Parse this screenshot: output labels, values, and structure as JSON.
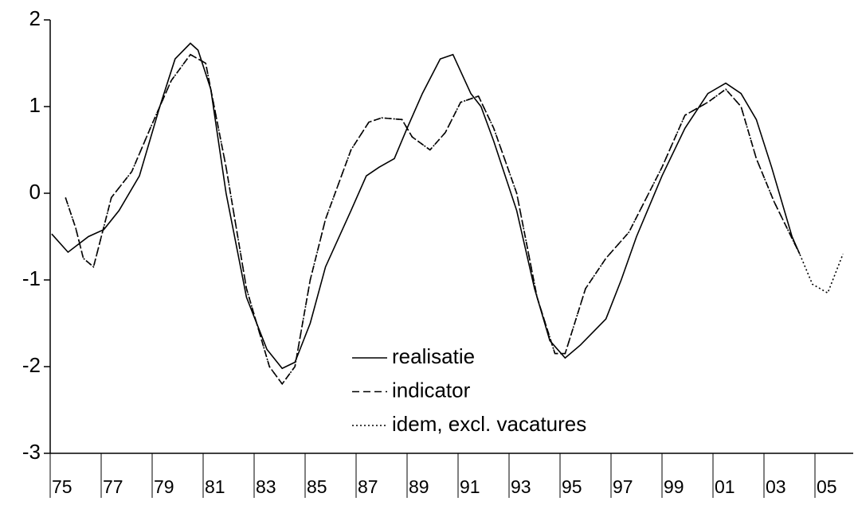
{
  "chart_data": {
    "type": "line",
    "ylim": [
      -3,
      2
    ],
    "yticks": [
      -3,
      -2,
      -1,
      0,
      1,
      2
    ],
    "xlim": [
      1975,
      2006.5
    ],
    "xticks": [
      {
        "value": 1975,
        "label": "75"
      },
      {
        "value": 1977,
        "label": "77"
      },
      {
        "value": 1979,
        "label": "79"
      },
      {
        "value": 1981,
        "label": "81"
      },
      {
        "value": 1983,
        "label": "83"
      },
      {
        "value": 1985,
        "label": "85"
      },
      {
        "value": 1987,
        "label": "87"
      },
      {
        "value": 1989,
        "label": "89"
      },
      {
        "value": 1991,
        "label": "91"
      },
      {
        "value": 1993,
        "label": "93"
      },
      {
        "value": 1995,
        "label": "95"
      },
      {
        "value": 1997,
        "label": "97"
      },
      {
        "value": 1999,
        "label": "99"
      },
      {
        "value": 2001,
        "label": "01"
      },
      {
        "value": 2003,
        "label": "03"
      },
      {
        "value": 2005,
        "label": "05"
      }
    ],
    "series": [
      {
        "name": "realisatie",
        "color": "#000000",
        "dash": "solid",
        "x": [
          1975.06,
          1975.7,
          1976.5,
          1977.1,
          1977.7,
          1978.5,
          1979.3,
          1979.9,
          1980.5,
          1980.8,
          1981.3,
          1981.9,
          1982.7,
          1983.5,
          1984.1,
          1984.6,
          1985.2,
          1985.8,
          1986.8,
          1987.4,
          1987.9,
          1988.5,
          1989,
          1989.6,
          1990.3,
          1990.8,
          1991.5,
          1991.9,
          1992.4,
          1993.3,
          1994,
          1994.6,
          1995.2,
          1995.8,
          1996.8,
          1997.4,
          1998,
          1999,
          1999.9,
          2000.8,
          2001.5,
          2002.1,
          2002.7,
          2003.3,
          2004.1,
          2004.4
        ],
        "values": [
          -0.47,
          -0.68,
          -0.5,
          -0.42,
          -0.2,
          0.2,
          1.0,
          1.55,
          1.73,
          1.65,
          1.2,
          0.0,
          -1.2,
          -1.8,
          -2.02,
          -1.95,
          -1.5,
          -0.85,
          -0.2,
          0.2,
          0.3,
          0.4,
          0.75,
          1.15,
          1.55,
          1.6,
          1.15,
          1.0,
          0.6,
          -0.2,
          -1.1,
          -1.7,
          -1.9,
          -1.75,
          -1.45,
          -1.0,
          -0.5,
          0.2,
          0.75,
          1.15,
          1.27,
          1.15,
          0.85,
          0.3,
          -0.5,
          -0.7
        ]
      },
      {
        "name": "indicator",
        "color": "#000000",
        "dash": "dashed",
        "x": [
          1975.6,
          1976,
          1976.3,
          1976.7,
          1977.4,
          1978.2,
          1979,
          1979.75,
          1980.5,
          1981.1,
          1981.9,
          1982.7,
          1983.6,
          1984.1,
          1984.6,
          1985.2,
          1985.8,
          1986.8,
          1987.5,
          1988,
          1988.8,
          1989.2,
          1989.9,
          1990.5,
          1991.1,
          1991.8,
          1992.4,
          1993.3,
          1994.1,
          1994.8,
          1995.2,
          1996,
          1996.8,
          1997.7,
          1999,
          1999.9,
          2000.8,
          2001.5,
          2002.1,
          2002.7,
          2003.4,
          2004.4
        ],
        "values": [
          -0.05,
          -0.4,
          -0.75,
          -0.85,
          -0.05,
          0.25,
          0.8,
          1.3,
          1.6,
          1.5,
          0.3,
          -1.1,
          -2.0,
          -2.2,
          -2.0,
          -1.0,
          -0.3,
          0.5,
          0.82,
          0.87,
          0.85,
          0.65,
          0.5,
          0.7,
          1.05,
          1.12,
          0.75,
          0.0,
          -1.2,
          -1.85,
          -1.85,
          -1.1,
          -0.75,
          -0.45,
          0.3,
          0.9,
          1.05,
          1.2,
          1.0,
          0.4,
          -0.1,
          -0.7
        ]
      },
      {
        "name": "idem, excl. vacatures",
        "color": "#000000",
        "dash": "dotted",
        "x": [
          1975.6,
          1976,
          1976.3,
          1976.7,
          1977.4,
          1978.2,
          1979,
          1979.75,
          1980.5,
          1981.1,
          1981.9,
          1982.7,
          1983.6,
          1984.1,
          1984.6,
          1985.2,
          1985.8,
          1986.8,
          1987.5,
          1988,
          1988.8,
          1989.2,
          1989.9,
          1990.5,
          1991.1,
          1991.8,
          1992.4,
          1993.3,
          1994.1,
          1994.8,
          1995.2,
          1996,
          1996.8,
          1997.7,
          1999,
          1999.9,
          2000.8,
          2001.5,
          2002.1,
          2002.7,
          2003.4,
          2004.4,
          2004.9,
          2005.5,
          2006.1
        ],
        "values": [
          -0.05,
          -0.4,
          -0.75,
          -0.85,
          -0.05,
          0.25,
          0.8,
          1.3,
          1.6,
          1.5,
          0.3,
          -1.1,
          -2.0,
          -2.2,
          -2.0,
          -1.0,
          -0.3,
          0.5,
          0.82,
          0.87,
          0.85,
          0.65,
          0.5,
          0.7,
          1.05,
          1.12,
          0.75,
          0.0,
          -1.2,
          -1.85,
          -1.85,
          -1.1,
          -0.75,
          -0.45,
          0.3,
          0.9,
          1.05,
          1.2,
          1.0,
          0.4,
          -0.1,
          -0.7,
          -1.05,
          -1.15,
          -0.7
        ]
      }
    ]
  }
}
